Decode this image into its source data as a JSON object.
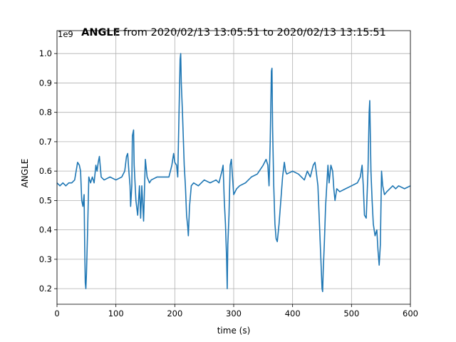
{
  "chart_data": {
    "type": "line",
    "title_bold": "ANGLE",
    "title_rest": " from 2020/02/13 13:05:51 to 2020/02/13 13:15:51",
    "offset_text": "1e9",
    "xlabel": "time (s)",
    "ylabel": "ANGLE",
    "xlim": [
      0,
      600
    ],
    "ylim": [
      0.147,
      1.078
    ],
    "xticks": [
      0,
      100,
      200,
      300,
      400,
      500,
      600
    ],
    "yticks": [
      0.2,
      0.3,
      0.4,
      0.5,
      0.6,
      0.7,
      0.8,
      0.9,
      {
        "value": 1,
        "label": "1.0"
      }
    ],
    "grid": true,
    "x": [
      0,
      5,
      10,
      15,
      20,
      25,
      30,
      35,
      38,
      40,
      42,
      44,
      46,
      47,
      48,
      49,
      50,
      52,
      54,
      57,
      60,
      63,
      66,
      68,
      70,
      72,
      75,
      80,
      90,
      100,
      110,
      115,
      118,
      120,
      122,
      124,
      125,
      127,
      128,
      130,
      131,
      134,
      137,
      140,
      142,
      144,
      147,
      150,
      153,
      157,
      160,
      170,
      180,
      190,
      195,
      198,
      200,
      203,
      205,
      207,
      209,
      210,
      211,
      213,
      216,
      218,
      220,
      222,
      223,
      225,
      228,
      232,
      240,
      250,
      260,
      270,
      275,
      280,
      282,
      284,
      286,
      288,
      289,
      290,
      292,
      294,
      296,
      298,
      300,
      305,
      310,
      320,
      330,
      340,
      350,
      355,
      358,
      360,
      362,
      364,
      365,
      366,
      368,
      370,
      372,
      374,
      377,
      380,
      383,
      386,
      388,
      390,
      400,
      410,
      420,
      425,
      430,
      435,
      438,
      440,
      443,
      446,
      448,
      450,
      451,
      452,
      454,
      456,
      458,
      460,
      462,
      465,
      468,
      470,
      472,
      475,
      480,
      490,
      500,
      510,
      515,
      518,
      520,
      522,
      525,
      528,
      530,
      531,
      533,
      535,
      537,
      540,
      543,
      545,
      547,
      549,
      551,
      553,
      556,
      560,
      570,
      575,
      580,
      590,
      600
    ],
    "series": [
      {
        "name": "ANGLE",
        "color": "#1f77b4",
        "values": [
          0.56,
          0.55,
          0.56,
          0.55,
          0.56,
          0.56,
          0.57,
          0.63,
          0.62,
          0.6,
          0.5,
          0.48,
          0.52,
          0.35,
          0.22,
          0.2,
          0.25,
          0.4,
          0.58,
          0.56,
          0.58,
          0.56,
          0.62,
          0.6,
          0.63,
          0.65,
          0.58,
          0.57,
          0.58,
          0.57,
          0.58,
          0.6,
          0.65,
          0.66,
          0.6,
          0.55,
          0.48,
          0.55,
          0.72,
          0.74,
          0.62,
          0.5,
          0.45,
          0.55,
          0.44,
          0.55,
          0.43,
          0.64,
          0.58,
          0.56,
          0.57,
          0.58,
          0.58,
          0.58,
          0.62,
          0.66,
          0.63,
          0.62,
          0.58,
          0.78,
          0.98,
          1.0,
          0.9,
          0.8,
          0.62,
          0.55,
          0.45,
          0.41,
          0.38,
          0.48,
          0.55,
          0.56,
          0.55,
          0.57,
          0.56,
          0.57,
          0.56,
          0.6,
          0.62,
          0.5,
          0.42,
          0.3,
          0.2,
          0.35,
          0.45,
          0.62,
          0.64,
          0.58,
          0.52,
          0.54,
          0.55,
          0.56,
          0.58,
          0.59,
          0.62,
          0.64,
          0.62,
          0.55,
          0.7,
          0.94,
          0.95,
          0.75,
          0.55,
          0.42,
          0.37,
          0.36,
          0.42,
          0.5,
          0.58,
          0.63,
          0.6,
          0.59,
          0.6,
          0.59,
          0.57,
          0.6,
          0.58,
          0.62,
          0.63,
          0.6,
          0.55,
          0.4,
          0.3,
          0.2,
          0.19,
          0.26,
          0.36,
          0.48,
          0.55,
          0.62,
          0.56,
          0.62,
          0.6,
          0.54,
          0.5,
          0.54,
          0.53,
          0.54,
          0.55,
          0.56,
          0.58,
          0.62,
          0.55,
          0.45,
          0.44,
          0.6,
          0.8,
          0.84,
          0.6,
          0.5,
          0.42,
          0.38,
          0.4,
          0.33,
          0.28,
          0.35,
          0.6,
          0.55,
          0.52,
          0.53,
          0.55,
          0.54,
          0.55,
          0.54,
          0.55
        ]
      }
    ]
  }
}
